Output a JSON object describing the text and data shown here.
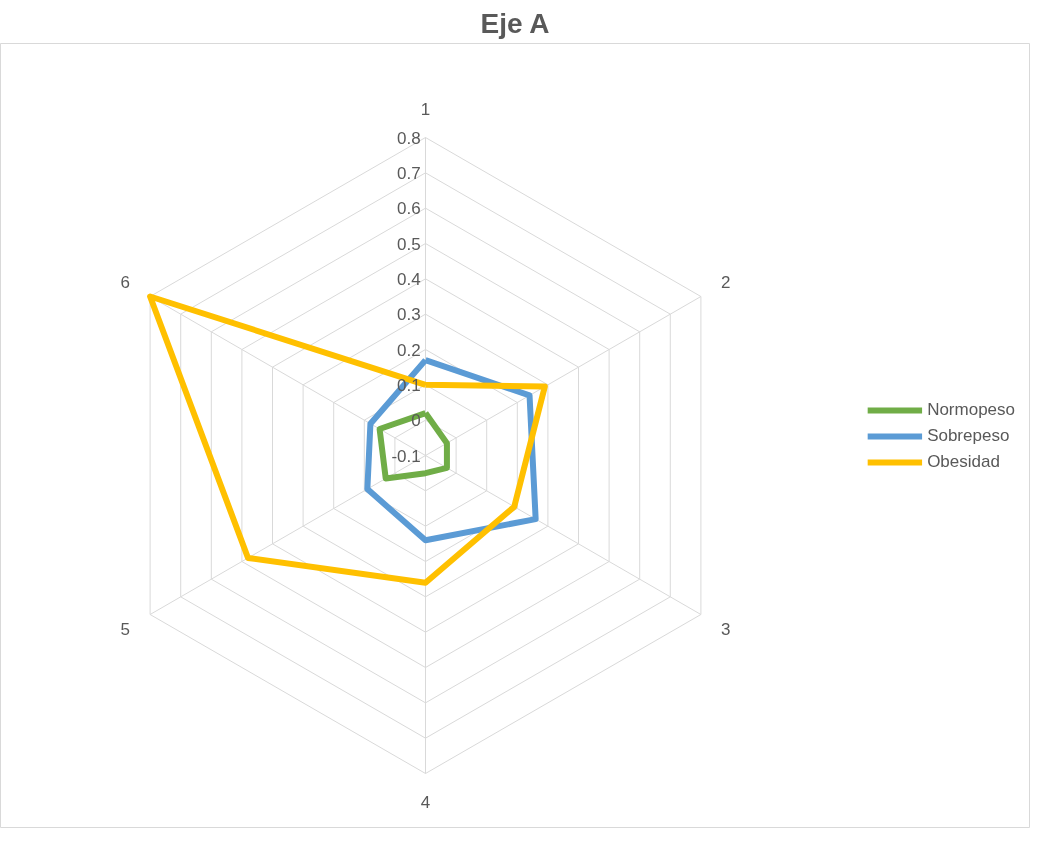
{
  "chart_data": {
    "type": "radar",
    "title": "Eje A",
    "categories": [
      "1",
      "2",
      "3",
      "4",
      "5",
      "6"
    ],
    "ylim": [
      -0.1,
      0.8
    ],
    "yticks": [
      -0.1,
      0,
      0.1,
      0.2,
      0.3,
      0.4,
      0.5,
      0.6,
      0.7,
      0.8
    ],
    "grid": true,
    "legend": "right",
    "series": [
      {
        "name": "Normopeso",
        "color": "#70ad47",
        "values": [
          0.02,
          -0.03,
          -0.03,
          -0.05,
          0.03,
          0.05
        ]
      },
      {
        "name": "Sobrepeso",
        "color": "#5b9bd5",
        "values": [
          0.17,
          0.24,
          0.26,
          0.14,
          0.09,
          0.08
        ]
      },
      {
        "name": "Obesidad",
        "color": "#ffc000",
        "values": [
          0.1,
          0.29,
          0.19,
          0.26,
          0.48,
          0.8
        ]
      }
    ]
  }
}
